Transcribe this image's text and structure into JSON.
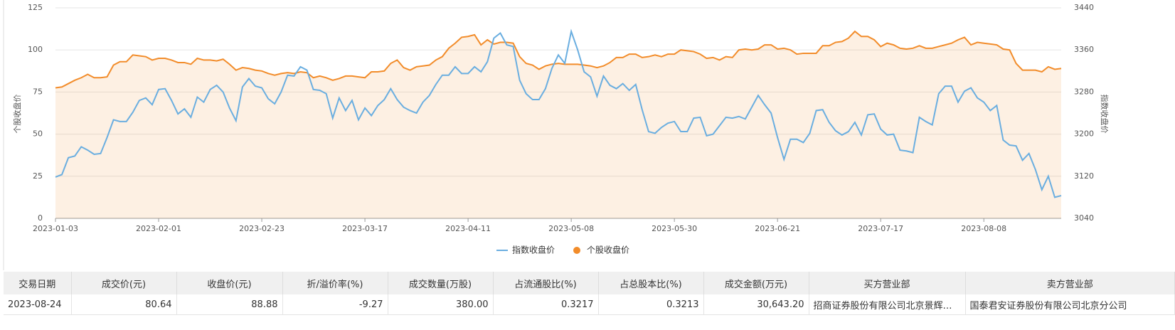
{
  "chart_data": {
    "type": "line",
    "ylabel": "个股收盘价",
    "y2label": "指数收盘价",
    "categories": [
      "2023-01-03",
      null,
      null,
      null,
      null,
      null,
      null,
      null,
      null,
      null,
      null,
      null,
      null,
      null,
      null,
      null,
      "2023-02-01",
      null,
      null,
      null,
      null,
      null,
      null,
      null,
      null,
      null,
      null,
      null,
      null,
      null,
      null,
      null,
      "2023-02-23",
      null,
      null,
      null,
      null,
      null,
      null,
      null,
      null,
      null,
      null,
      null,
      null,
      null,
      null,
      null,
      "2023-03-17",
      null,
      null,
      null,
      null,
      null,
      null,
      null,
      null,
      null,
      null,
      null,
      null,
      null,
      null,
      null,
      "2023-04-11",
      null,
      null,
      null,
      null,
      null,
      null,
      null,
      null,
      null,
      null,
      null,
      null,
      null,
      null,
      null,
      "2023-05-08",
      null,
      null,
      null,
      null,
      null,
      null,
      null,
      null,
      null,
      null,
      null,
      null,
      null,
      null,
      null,
      "2023-05-30",
      null,
      null,
      null,
      null,
      null,
      null,
      null,
      null,
      null,
      null,
      null,
      null,
      null,
      null,
      null,
      "2023-06-21",
      null,
      null,
      null,
      null,
      null,
      null,
      null,
      null,
      null,
      null,
      null,
      null,
      null,
      null,
      null,
      "2023-07-17",
      null,
      null,
      null,
      null,
      null,
      null,
      null,
      null,
      null,
      null,
      null,
      null,
      null,
      null,
      null,
      "2023-08-08",
      null,
      null,
      null,
      null,
      null,
      null,
      null,
      null,
      null,
      null,
      null,
      null
    ],
    "series": [
      {
        "name": "指数收盘价",
        "color": "#6aaee0",
        "axis": "y2",
        "values": [
          3118.4,
          3123.2,
          3155.2,
          3158.4,
          3176,
          3169.6,
          3161.6,
          3163.2,
          3193.6,
          3227.2,
          3224,
          3224,
          3241.6,
          3264,
          3268.8,
          3256,
          3284.8,
          3286.4,
          3264,
          3238.4,
          3248,
          3232,
          3270.4,
          3260.8,
          3284.8,
          3292.8,
          3280,
          3249.6,
          3225.6,
          3289.6,
          3305.6,
          3291.2,
          3288,
          3267.2,
          3257.6,
          3280,
          3312,
          3310.4,
          3328,
          3321.6,
          3284.8,
          3283.2,
          3276.8,
          3230.4,
          3268.8,
          3244.8,
          3264,
          3227.2,
          3249.6,
          3235.2,
          3254.4,
          3265.6,
          3286.4,
          3265.6,
          3251.2,
          3244.8,
          3240,
          3260.8,
          3273.6,
          3294.4,
          3312,
          3312,
          3328,
          3315.2,
          3315.2,
          3328,
          3318.4,
          3337.6,
          3382.4,
          3392,
          3369.6,
          3366.4,
          3302.4,
          3276.8,
          3265.6,
          3265.6,
          3286.4,
          3324.8,
          3350.4,
          3334.4,
          3395.2,
          3360,
          3318.4,
          3308.8,
          3272,
          3310.4,
          3292.8,
          3286.4,
          3296,
          3283.2,
          3294.4,
          3246.4,
          3204.8,
          3201.6,
          3212.8,
          3220.8,
          3224,
          3204.8,
          3204.8,
          3230.4,
          3232,
          3196.8,
          3200,
          3216,
          3232,
          3230.4,
          3233.6,
          3228.8,
          3251.2,
          3273.6,
          3256,
          3240,
          3193.6,
          3152,
          3190.4,
          3190.4,
          3184,
          3201.6,
          3244.8,
          3246.4,
          3222.4,
          3206.4,
          3198.4,
          3204.8,
          3222.4,
          3198.4,
          3236.8,
          3238.4,
          3209.6,
          3198.4,
          3200,
          3169.6,
          3168,
          3164.8,
          3232,
          3224,
          3217.6,
          3276.8,
          3291.2,
          3291.2,
          3260.8,
          3281.6,
          3288,
          3268.8,
          3260.8,
          3244.8,
          3254.4,
          3188.8,
          3179.2,
          3177.6,
          3150.4,
          3163.2,
          3132.8,
          3094.4,
          3120,
          3080,
          3083.2
        ]
      },
      {
        "name": "个股收盘价",
        "color": "#f28c2a",
        "area": true,
        "values": [
          77.5,
          78,
          80,
          82,
          83.5,
          85.5,
          83.5,
          83.5,
          84,
          91,
          93,
          93,
          97,
          96.5,
          96,
          94,
          95,
          95,
          94,
          92.5,
          92.5,
          91.5,
          95,
          94,
          94,
          93.5,
          94.5,
          91.5,
          88,
          89.5,
          89,
          88,
          87.5,
          86,
          85,
          86,
          86.5,
          86,
          87,
          86.5,
          83.5,
          84.5,
          83.5,
          82,
          83,
          84.5,
          84.5,
          84,
          83.5,
          87,
          87,
          87.5,
          92,
          94,
          89.5,
          88,
          90,
          90.5,
          91,
          94,
          96,
          101,
          104,
          107.5,
          108,
          109,
          103,
          106,
          103.5,
          104.5,
          104.5,
          104,
          96,
          92,
          91,
          88.5,
          90.5,
          91.5,
          92,
          91.5,
          91.5,
          91.5,
          91,
          90.5,
          89.5,
          90.5,
          92.5,
          95.5,
          95.5,
          97.5,
          97.5,
          95.5,
          96,
          97,
          96,
          97.5,
          97.5,
          100,
          99.5,
          99,
          97.5,
          95,
          95.5,
          94,
          96,
          95.5,
          100,
          100.5,
          100,
          100.5,
          103,
          103,
          100.5,
          101,
          100,
          97.5,
          98,
          98,
          98,
          102.5,
          102.5,
          104.5,
          105,
          107,
          111,
          108,
          108,
          106,
          102,
          104,
          103,
          101,
          100.5,
          101,
          102.5,
          101,
          101,
          102,
          103,
          104,
          106,
          107.5,
          103,
          104.5,
          104,
          103.5,
          103,
          100.5,
          100,
          92,
          88,
          88,
          88,
          87,
          90,
          88.5,
          89
        ]
      }
    ],
    "ylim": [
      0,
      125
    ],
    "yticks": [
      0,
      25,
      50,
      75,
      100,
      125
    ],
    "y2lim": [
      3040,
      3440
    ],
    "y2ticks": [
      3040,
      3120,
      3200,
      3280,
      3360,
      3440
    ],
    "grid": true
  },
  "table": {
    "columns": [
      "交易日期",
      "成交价(元)",
      "收盘价(元)",
      "折/溢价率(%)",
      "成交数量(万股)",
      "占流通股比(%)",
      "占总股本比(%)",
      "成交金额(万元)",
      "买方营业部",
      "卖方营业部"
    ],
    "rows": [
      [
        "2023-08-24",
        "80.64",
        "88.88",
        "-9.27",
        "380.00",
        "0.3217",
        "0.3213",
        "30,643.20",
        "招商证券股份有限公司北京景辉街证券营业部",
        "国泰君安证券股份有限公司北京分公司"
      ]
    ]
  }
}
